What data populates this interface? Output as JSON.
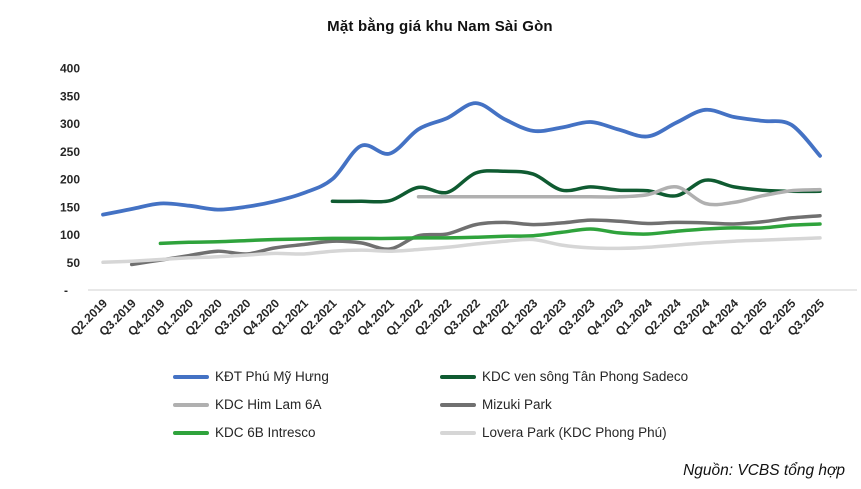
{
  "title": "Mặt bằng giá khu Nam Sài Gòn",
  "source_note": "Nguồn: VCBS tổng hợp",
  "chart_data": {
    "type": "line",
    "title": "Mặt bằng giá khu Nam Sài Gòn",
    "xlabel": "",
    "ylabel": "",
    "ylim": [
      0,
      400
    ],
    "ytick_step": 50,
    "ytick_labels": [
      "-",
      "50",
      "100",
      "150",
      "200",
      "250",
      "300",
      "350",
      "400"
    ],
    "grid": false,
    "smooth_lines": true,
    "legend_position": "bottom",
    "axis_color": "#d9d9d9",
    "text_color": "#262626",
    "x": [
      "Q2.2019",
      "Q3.2019",
      "Q4.2019",
      "Q1.2020",
      "Q2.2020",
      "Q3.2020",
      "Q4.2020",
      "Q1.2021",
      "Q2.2021",
      "Q3.2021",
      "Q4.2021",
      "Q1.2022",
      "Q2.2022",
      "Q3.2022",
      "Q4.2022",
      "Q1.2023",
      "Q2.2023",
      "Q3.2023",
      "Q4.2023",
      "Q1.2024",
      "Q2.2024",
      "Q3.2024",
      "Q4.2024",
      "Q1.2025",
      "Q2.2025",
      "Q3.2025"
    ],
    "series": [
      {
        "name": "KĐT Phú Mỹ Hưng",
        "color": "#4472c4",
        "line_width": 3.8,
        "values": [
          136,
          146,
          156,
          152,
          145,
          150,
          160,
          175,
          200,
          260,
          246,
          290,
          310,
          337,
          308,
          287,
          293,
          303,
          289,
          277,
          302,
          325,
          312,
          305,
          298,
          242
        ]
      },
      {
        "name": "KDC ven sông Tân Phong Sadeco",
        "color": "#0f5b31",
        "line_width": 3.5,
        "values": [
          null,
          null,
          null,
          null,
          null,
          null,
          null,
          null,
          160,
          160,
          161,
          185,
          176,
          211,
          214,
          209,
          180,
          186,
          180,
          179,
          170,
          198,
          186,
          180,
          178,
          178
        ]
      },
      {
        "name": "KDC Him Lam 6A",
        "color": "#b0b0b0",
        "line_width": 3.5,
        "values": [
          null,
          null,
          null,
          null,
          null,
          null,
          null,
          null,
          null,
          null,
          null,
          168,
          168,
          168,
          168,
          168,
          168,
          168,
          168,
          172,
          186,
          156,
          158,
          170,
          179,
          181
        ]
      },
      {
        "name": "Mizuki Park",
        "color": "#707070",
        "line_width": 3.5,
        "values": [
          null,
          46,
          54,
          62,
          70,
          65,
          76,
          82,
          88,
          85,
          74,
          98,
          101,
          118,
          122,
          118,
          121,
          126,
          124,
          120,
          122,
          121,
          119,
          123,
          130,
          134
        ]
      },
      {
        "name": "KDC 6B Intresco",
        "color": "#2fa33c",
        "line_width": 3.5,
        "values": [
          null,
          null,
          84,
          86,
          87,
          89,
          91,
          92,
          93,
          93,
          93,
          94,
          94,
          95,
          97,
          98,
          104,
          110,
          103,
          101,
          106,
          110,
          112,
          112,
          117,
          119
        ]
      },
      {
        "name": "Lovera Park (KDC Phong Phú)",
        "color": "#d6d6d6",
        "line_width": 3.5,
        "values": [
          50,
          52,
          55,
          58,
          60,
          63,
          66,
          65,
          70,
          72,
          70,
          73,
          77,
          83,
          88,
          91,
          81,
          76,
          75,
          77,
          81,
          85,
          88,
          90,
          92,
          94
        ]
      }
    ]
  }
}
